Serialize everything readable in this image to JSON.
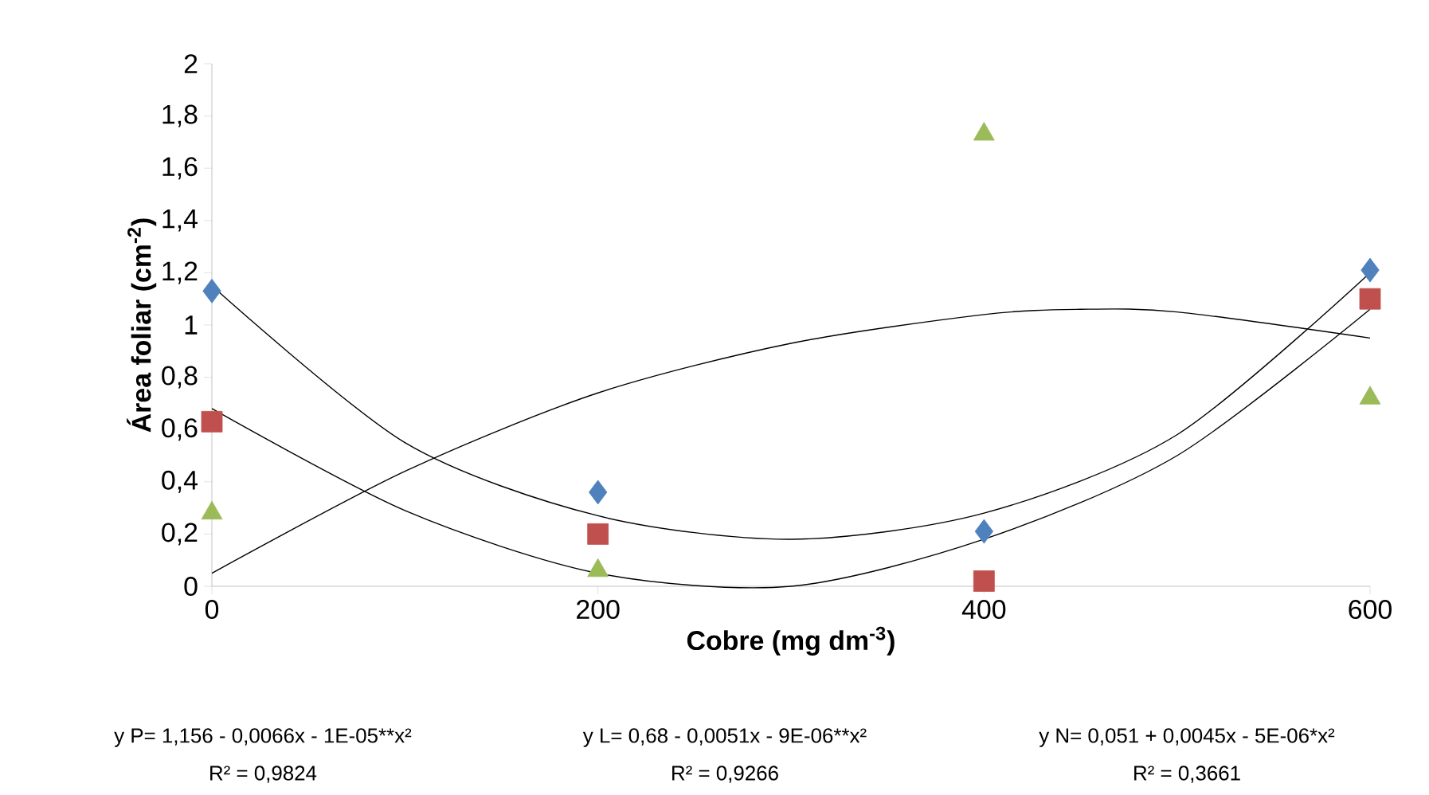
{
  "chart_data": {
    "type": "scatter",
    "xlabel": "Cobre (mg dm$^{-3}$)",
    "ylabel": "Área foliar (cm$^{-2}$)",
    "x": [
      0,
      200,
      400,
      600
    ],
    "series": [
      {
        "color": "#4f81bd",
        "marker": "diamond",
        "values": [
          1.13,
          0.36,
          0.21,
          1.21
        ]
      },
      {
        "color": "#c0504d",
        "marker": "square",
        "values": [
          0.63,
          0.2,
          0.02,
          1.1
        ]
      },
      {
        "color": "#9bbb59",
        "marker": "triangle",
        "values": [
          0.28,
          0.06,
          1.73,
          0.72
        ]
      },
      {
        "type": "line",
        "color": "#000000",
        "marker": "none",
        "x": [
          0,
          100,
          200,
          300,
          400,
          500,
          600
        ],
        "values": [
          1.15,
          0.55,
          0.27,
          0.18,
          0.28,
          0.58,
          1.2
        ]
      },
      {
        "type": "line",
        "color": "#000000",
        "marker": "none",
        "x": [
          0,
          100,
          200,
          300,
          400,
          500,
          600
        ],
        "values": [
          0.68,
          0.29,
          0.05,
          0.0,
          0.18,
          0.5,
          1.06
        ]
      },
      {
        "type": "line",
        "color": "#000000",
        "marker": "none",
        "x": [
          0,
          100,
          200,
          300,
          400,
          450,
          500,
          600
        ],
        "values": [
          0.05,
          0.44,
          0.74,
          0.93,
          1.04,
          1.06,
          1.05,
          0.95
        ]
      }
    ],
    "xlim": [
      0,
      600
    ],
    "xticks": [
      0,
      200,
      400,
      600
    ],
    "ylim": [
      0,
      2
    ],
    "yticks": [
      {
        "value": 0,
        "label": "0"
      },
      {
        "value": 0.2,
        "label": "0,2"
      },
      {
        "value": 0.4,
        "label": "0,4"
      },
      {
        "value": 0.6,
        "label": "0,6"
      },
      {
        "value": 0.8,
        "label": "0,8"
      },
      {
        "value": 1,
        "label": "1"
      },
      {
        "value": 1.2,
        "label": "1,2"
      },
      {
        "value": 1.4,
        "label": "1,4"
      },
      {
        "value": 1.6,
        "label": "1,6"
      },
      {
        "value": 1.8,
        "label": "1,8"
      },
      {
        "value": 2,
        "label": "2"
      }
    ],
    "grid": false,
    "annotations": [
      "y P= 1,156 - 0,0066x - 1E-05**x²",
      "R² = 0,9824",
      "y L= 0,68 - 0,0051x - 9E-06**x²",
      "R² = 0,9266",
      "y N= 0,051 + 0,0045x - 5E-06*x²",
      "R² = 0,3661"
    ]
  }
}
